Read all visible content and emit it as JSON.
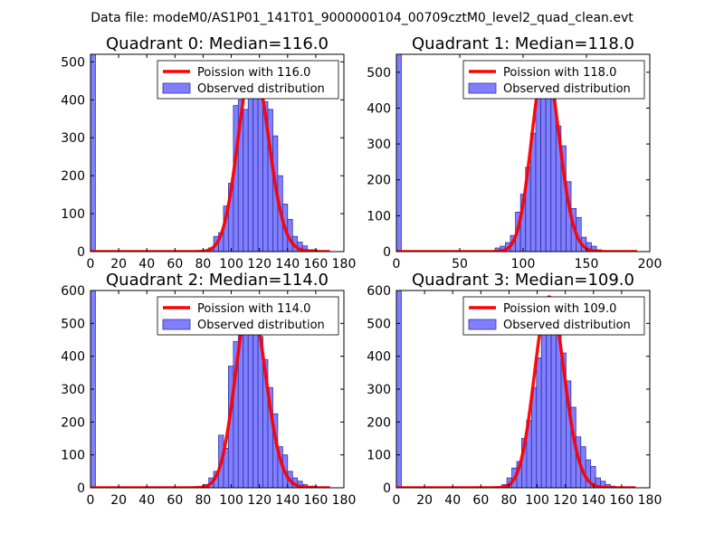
{
  "suptitle": "Data file: modeM0/AS1P01_141T01_9000000104_00709cztM0_level2_quad_clean.evt",
  "colors": {
    "bar_fill": "#7f7fff",
    "bar_edge": "#3232a0",
    "curve": "#ff0000",
    "axis": "#000000"
  },
  "chart_data": [
    {
      "type": "bar",
      "title": "Quadrant 0: Median=116.0",
      "xlim": [
        0,
        180
      ],
      "ylim": [
        0,
        520
      ],
      "xticks": [
        0,
        20,
        40,
        60,
        80,
        100,
        120,
        140,
        160,
        180
      ],
      "yticks": [
        0,
        100,
        200,
        300,
        400,
        500
      ],
      "bin_width": 3.5,
      "bars": [
        [
          0,
          520
        ],
        [
          84,
          10
        ],
        [
          87.5,
          40
        ],
        [
          91,
          50
        ],
        [
          94.5,
          120
        ],
        [
          98,
          180
        ],
        [
          101.5,
          385
        ],
        [
          105,
          400
        ],
        [
          108.5,
          375
        ],
        [
          112,
          485
        ],
        [
          115.5,
          495
        ],
        [
          119,
          470
        ],
        [
          122.5,
          395
        ],
        [
          126,
          375
        ],
        [
          129.5,
          305
        ],
        [
          133,
          200
        ],
        [
          136.5,
          125
        ],
        [
          140,
          85
        ],
        [
          143.5,
          40
        ],
        [
          147,
          25
        ],
        [
          150.5,
          15
        ],
        [
          154,
          5
        ],
        [
          157.5,
          5
        ]
      ],
      "poisson_mean": 116.0,
      "curve_range": [
        0,
        170
      ],
      "legend": [
        "Poission with 116.0",
        "Observed distribution"
      ]
    },
    {
      "type": "bar",
      "title": "Quadrant 1: Median=118.0",
      "xlim": [
        0,
        200
      ],
      "ylim": [
        0,
        550
      ],
      "xticks": [
        0,
        50,
        100,
        150,
        200
      ],
      "yticks": [
        0,
        100,
        200,
        300,
        400,
        500
      ],
      "bin_width": 3.9,
      "bars": [
        [
          0,
          550
        ],
        [
          78,
          10
        ],
        [
          82,
          15
        ],
        [
          86,
          25
        ],
        [
          90,
          45
        ],
        [
          94,
          110
        ],
        [
          98,
          160
        ],
        [
          102,
          235
        ],
        [
          106,
          330
        ],
        [
          110,
          475
        ],
        [
          114,
          525
        ],
        [
          118,
          510
        ],
        [
          122,
          460
        ],
        [
          126,
          350
        ],
        [
          130,
          295
        ],
        [
          134,
          195
        ],
        [
          138,
          120
        ],
        [
          142,
          95
        ],
        [
          146,
          40
        ],
        [
          150,
          25
        ],
        [
          154,
          15
        ],
        [
          158,
          5
        ]
      ],
      "poisson_mean": 118.0,
      "curve_range": [
        0,
        190
      ],
      "legend": [
        "Poission with 118.0",
        "Observed distribution"
      ]
    },
    {
      "type": "bar",
      "title": "Quadrant 2: Median=114.0",
      "xlim": [
        0,
        180
      ],
      "ylim": [
        0,
        600
      ],
      "xticks": [
        0,
        20,
        40,
        60,
        80,
        100,
        120,
        140,
        160,
        180
      ],
      "yticks": [
        0,
        100,
        200,
        300,
        400,
        500,
        600
      ],
      "bin_width": 3.5,
      "bars": [
        [
          0,
          600
        ],
        [
          80,
          10
        ],
        [
          84,
          30
        ],
        [
          87.5,
          50
        ],
        [
          91,
          160
        ],
        [
          94.5,
          120
        ],
        [
          98,
          370
        ],
        [
          101.5,
          445
        ],
        [
          105,
          475
        ],
        [
          108.5,
          540
        ],
        [
          112,
          565
        ],
        [
          115.5,
          570
        ],
        [
          119,
          460
        ],
        [
          122.5,
          390
        ],
        [
          126,
          305
        ],
        [
          129.5,
          225
        ],
        [
          133,
          125
        ],
        [
          136.5,
          100
        ],
        [
          140,
          50
        ],
        [
          143.5,
          30
        ],
        [
          147,
          20
        ],
        [
          150.5,
          10
        ],
        [
          154,
          5
        ],
        [
          157.5,
          5
        ]
      ],
      "poisson_mean": 114.0,
      "curve_range": [
        0,
        170
      ],
      "legend": [
        "Poission with 114.0",
        "Observed distribution"
      ]
    },
    {
      "type": "bar",
      "title": "Quadrant 3: Median=109.0",
      "xlim": [
        0,
        180
      ],
      "ylim": [
        0,
        600
      ],
      "xticks": [
        0,
        20,
        40,
        60,
        80,
        100,
        120,
        140,
        160,
        180
      ],
      "yticks": [
        0,
        100,
        200,
        300,
        400,
        500,
        600
      ],
      "bin_width": 3.5,
      "bars": [
        [
          0,
          600
        ],
        [
          75,
          10
        ],
        [
          78.5,
          30
        ],
        [
          82,
          60
        ],
        [
          85.5,
          80
        ],
        [
          89,
          150
        ],
        [
          92.5,
          205
        ],
        [
          96,
          305
        ],
        [
          99.5,
          395
        ],
        [
          103,
          485
        ],
        [
          106.5,
          565
        ],
        [
          110,
          580
        ],
        [
          113.5,
          550
        ],
        [
          117,
          410
        ],
        [
          120.5,
          325
        ],
        [
          124,
          245
        ],
        [
          127.5,
          155
        ],
        [
          131,
          125
        ],
        [
          134.5,
          85
        ],
        [
          138,
          65
        ],
        [
          141.5,
          30
        ],
        [
          145,
          20
        ],
        [
          148.5,
          10
        ],
        [
          152,
          5
        ]
      ],
      "poisson_mean": 109.0,
      "curve_range": [
        0,
        170
      ],
      "legend": [
        "Poission with 109.0",
        "Observed distribution"
      ]
    }
  ]
}
